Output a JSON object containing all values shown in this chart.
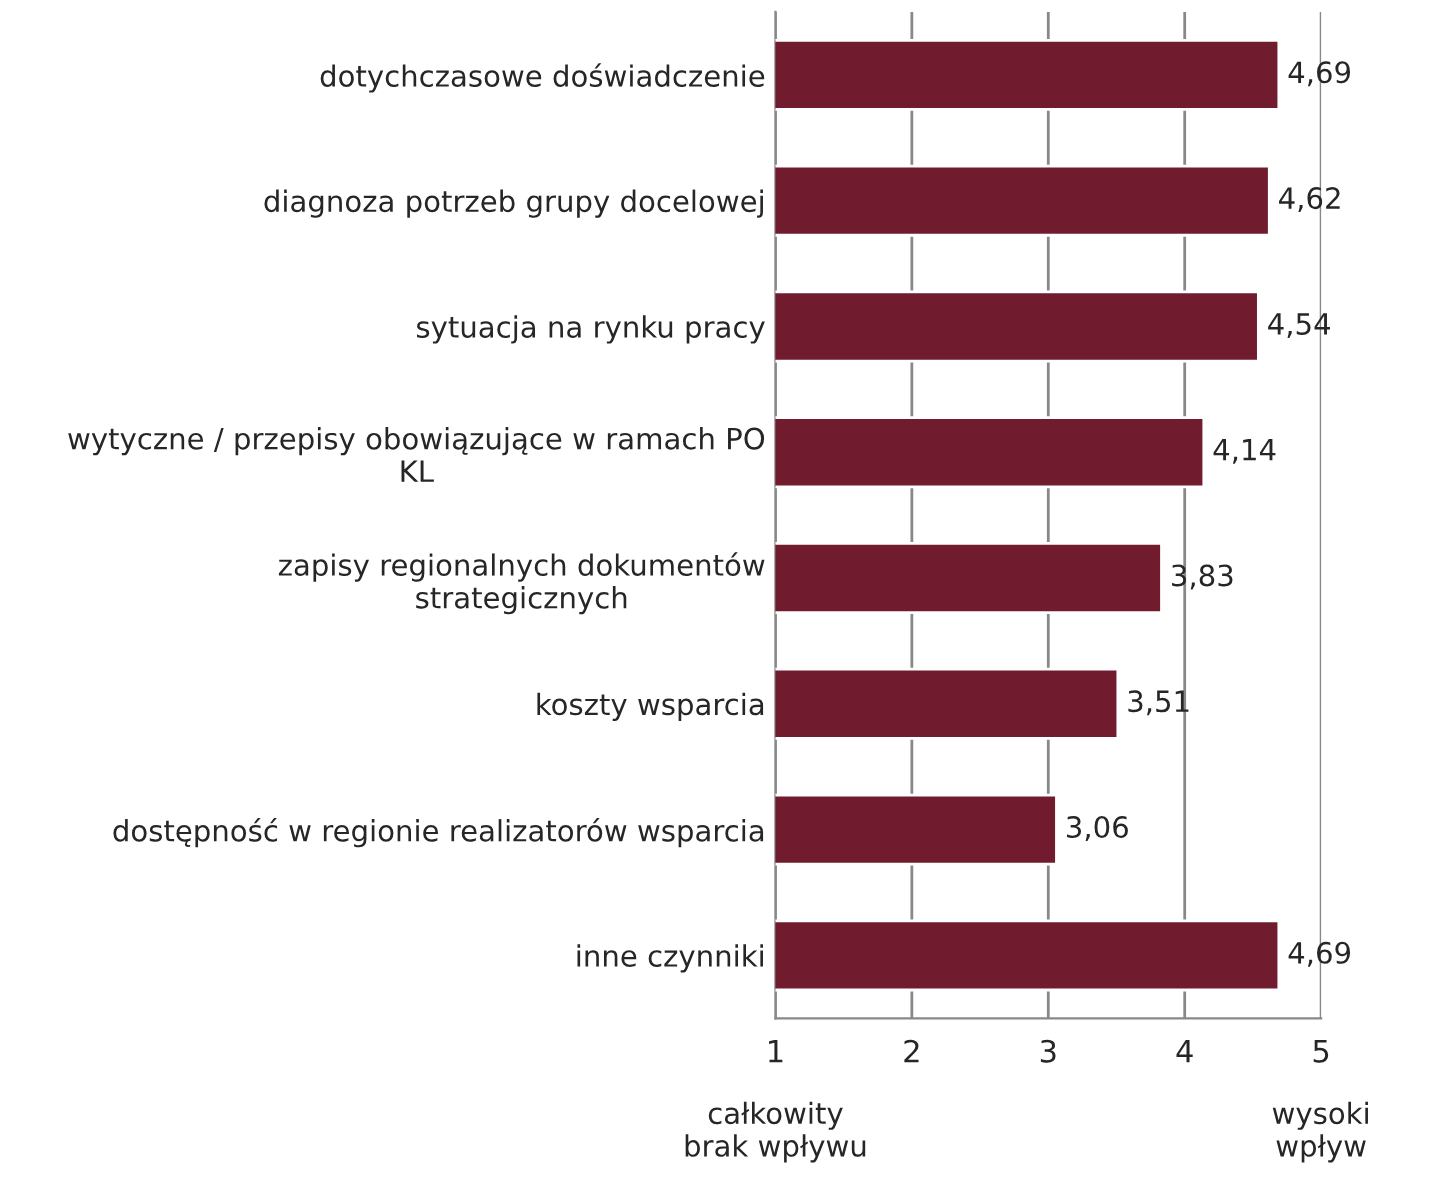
{
  "chart_data": {
    "type": "bar",
    "orientation": "horizontal",
    "categories": [
      "dotychczasowe doświadczenie",
      "diagnoza potrzeb grupy docelowej",
      "sytuacja na rynku pracy",
      "wytyczne / przepisy obowiązujące w ramach PO\nKL",
      "zapisy regionalnych dokumentów\nstrategicznych",
      "koszty wsparcia",
      "dostępność w regionie realizatorów wsparcia",
      "inne czynniki"
    ],
    "values": [
      4.69,
      4.62,
      4.54,
      4.14,
      3.83,
      3.51,
      3.06,
      4.69
    ],
    "color": "#701c2e",
    "xlim": [
      1,
      5
    ],
    "xticks": [
      1,
      2,
      3,
      4,
      5
    ],
    "value_labels": [
      "4,69",
      "4,62",
      "4,54",
      "4,14",
      "3,83",
      "3,51",
      "3,06",
      "4,69"
    ],
    "grid": "x",
    "legend": false,
    "annotations": [
      "całkowity\nbrak wpływu",
      "wysoki\nwpływ"
    ]
  }
}
